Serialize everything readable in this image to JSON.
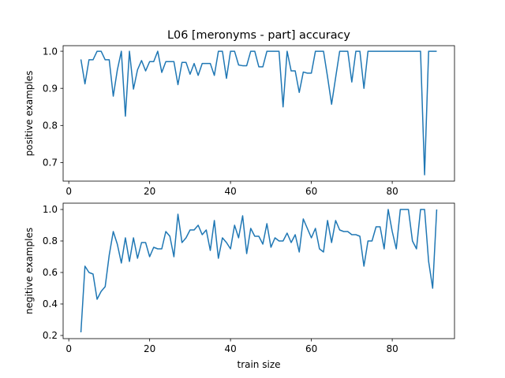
{
  "chart_data": [
    {
      "type": "line",
      "title": "L06 [meronyms - part] accuracy",
      "xlabel": "",
      "ylabel": "positive examples",
      "xlim": [
        -1.4,
        95.4
      ],
      "ylim": [
        0.65,
        1.015
      ],
      "xticks": [
        0,
        20,
        40,
        60,
        80
      ],
      "yticks": [
        0.7,
        0.8,
        0.9,
        1.0
      ],
      "ytick_labels": [
        "0.7",
        "0.8",
        "0.9",
        "1.0"
      ],
      "color": "#1f77b4",
      "grid": false,
      "x": [
        3,
        4,
        5,
        6,
        7,
        8,
        9,
        10,
        11,
        12,
        13,
        14,
        15,
        16,
        17,
        18,
        19,
        20,
        21,
        22,
        23,
        24,
        25,
        26,
        27,
        28,
        29,
        30,
        31,
        32,
        33,
        34,
        35,
        36,
        37,
        38,
        39,
        40,
        41,
        42,
        43,
        44,
        45,
        46,
        47,
        48,
        49,
        50,
        51,
        52,
        53,
        54,
        55,
        56,
        57,
        58,
        59,
        60,
        61,
        62,
        63,
        64,
        65,
        66,
        67,
        68,
        69,
        70,
        71,
        72,
        73,
        74,
        75,
        76,
        77,
        78,
        79,
        80,
        81,
        82,
        83,
        84,
        85,
        86,
        87,
        88,
        89,
        90,
        91
      ],
      "y": [
        0.978,
        0.912,
        0.977,
        0.977,
        1.0,
        1.0,
        0.977,
        0.977,
        0.879,
        0.949,
        1.0,
        0.825,
        1.0,
        0.898,
        0.95,
        0.975,
        0.947,
        0.972,
        0.972,
        1.0,
        0.943,
        0.972,
        0.972,
        0.972,
        0.91,
        0.97,
        0.97,
        0.938,
        0.967,
        0.935,
        0.967,
        0.967,
        0.967,
        0.935,
        1.0,
        1.0,
        0.927,
        1.0,
        1.0,
        0.963,
        0.961,
        0.961,
        1.0,
        1.0,
        0.958,
        0.958,
        1.0,
        1.0,
        1.0,
        1.0,
        0.85,
        1.0,
        0.947,
        0.947,
        0.889,
        0.944,
        0.941,
        0.941,
        1.0,
        1.0,
        1.0,
        0.931,
        0.857,
        0.929,
        1.0,
        1.0,
        1.0,
        0.917,
        1.0,
        1.0,
        0.9,
        1.0,
        1.0,
        1.0,
        1.0,
        1.0,
        1.0,
        1.0,
        1.0,
        1.0,
        1.0,
        1.0,
        1.0,
        1.0,
        1.0,
        0.667,
        1.0,
        1.0,
        1.0
      ]
    },
    {
      "type": "line",
      "title": "",
      "xlabel": "train size",
      "ylabel": "negitive examples",
      "xlim": [
        -1.4,
        95.4
      ],
      "ylim": [
        0.18,
        1.04
      ],
      "xticks": [
        0,
        20,
        40,
        60,
        80
      ],
      "yticks": [
        0.2,
        0.4,
        0.6,
        0.8,
        1.0
      ],
      "ytick_labels": [
        "0.2",
        "0.4",
        "0.6",
        "0.8",
        "1.0"
      ],
      "color": "#1f77b4",
      "grid": false,
      "x": [
        3,
        4,
        5,
        6,
        7,
        8,
        9,
        10,
        11,
        12,
        13,
        14,
        15,
        16,
        17,
        18,
        19,
        20,
        21,
        22,
        23,
        24,
        25,
        26,
        27,
        28,
        29,
        30,
        31,
        32,
        33,
        34,
        35,
        36,
        37,
        38,
        39,
        40,
        41,
        42,
        43,
        44,
        45,
        46,
        47,
        48,
        49,
        50,
        51,
        52,
        53,
        54,
        55,
        56,
        57,
        58,
        59,
        60,
        61,
        62,
        63,
        64,
        65,
        66,
        67,
        68,
        69,
        70,
        71,
        72,
        73,
        74,
        75,
        76,
        77,
        78,
        79,
        80,
        81,
        82,
        83,
        84,
        85,
        86,
        87,
        88,
        89,
        90,
        91
      ],
      "y": [
        0.22,
        0.64,
        0.6,
        0.59,
        0.43,
        0.48,
        0.51,
        0.71,
        0.86,
        0.78,
        0.66,
        0.82,
        0.67,
        0.82,
        0.69,
        0.79,
        0.79,
        0.7,
        0.76,
        0.75,
        0.75,
        0.86,
        0.83,
        0.7,
        0.97,
        0.79,
        0.82,
        0.87,
        0.87,
        0.9,
        0.84,
        0.87,
        0.74,
        0.93,
        0.69,
        0.82,
        0.79,
        0.75,
        0.9,
        0.82,
        0.96,
        0.72,
        0.88,
        0.83,
        0.83,
        0.78,
        0.91,
        0.76,
        0.82,
        0.8,
        0.8,
        0.85,
        0.79,
        0.84,
        0.73,
        0.94,
        0.88,
        0.82,
        0.88,
        0.75,
        0.73,
        0.93,
        0.79,
        0.93,
        0.87,
        0.86,
        0.86,
        0.84,
        0.84,
        0.83,
        0.64,
        0.8,
        0.8,
        0.89,
        0.89,
        0.75,
        1.0,
        0.86,
        0.75,
        1.0,
        1.0,
        1.0,
        0.8,
        0.75,
        1.0,
        1.0,
        0.67,
        0.5,
        1.0
      ]
    }
  ]
}
